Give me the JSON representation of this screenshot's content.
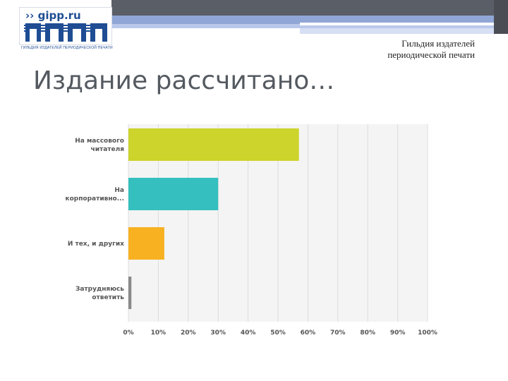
{
  "header": {
    "logo_text": "›› gipp.ru",
    "logo_caption": "ГИЛЬДИЯ ИЗДАТЕЛЕЙ ПЕРИОДИЧЕСКОЙ ПЕЧАТИ",
    "guild_line1": "Гильдия издателей",
    "guild_line2": "периодической печати"
  },
  "slide": {
    "title": "Издание рассчитано…"
  },
  "chart_data": {
    "type": "bar",
    "orientation": "horizontal",
    "categories": [
      [
        "На массового",
        "читателя"
      ],
      [
        "На",
        "корпоративно..."
      ],
      [
        "И тех, и других"
      ],
      [
        "Затрудняюсь",
        "ответить"
      ]
    ],
    "values": [
      57,
      30,
      12,
      1
    ],
    "colors": [
      "#cdd42b",
      "#35bfbf",
      "#f7b121",
      "#8a8a8a"
    ],
    "xlim": [
      0,
      100
    ],
    "xticks": [
      "0%",
      "10%",
      "20%",
      "30%",
      "40%",
      "50%",
      "60%",
      "70%",
      "80%",
      "90%",
      "100%"
    ],
    "grid": true
  }
}
